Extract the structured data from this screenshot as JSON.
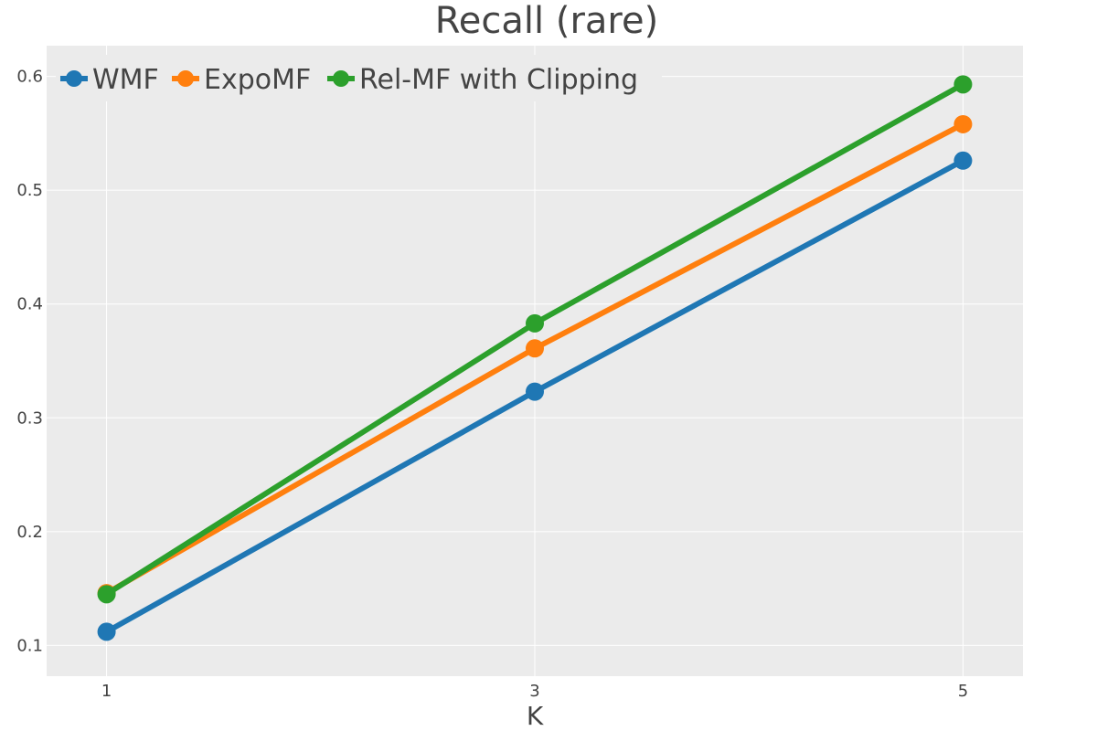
{
  "chart_data": {
    "type": "line",
    "title": "Recall (rare)",
    "xlabel": "K",
    "ylabel": "",
    "x": [
      1,
      3,
      5
    ],
    "x_ticks": [
      "1",
      "3",
      "5"
    ],
    "y_ticks": [
      "0.1",
      "0.2",
      "0.3",
      "0.4",
      "0.5",
      "0.6"
    ],
    "xlim": [
      0.72,
      5.28
    ],
    "ylim": [
      0.073,
      0.627
    ],
    "grid": true,
    "legend_position": "top-left",
    "series": [
      {
        "name": "WMF",
        "color": "#1f77b4",
        "values": [
          0.112,
          0.323,
          0.526
        ]
      },
      {
        "name": "ExpoMF",
        "color": "#ff7f0e",
        "values": [
          0.146,
          0.361,
          0.558
        ]
      },
      {
        "name": "Rel-MF with Clipping",
        "color": "#2ca02c",
        "values": [
          0.145,
          0.383,
          0.593
        ]
      }
    ]
  }
}
